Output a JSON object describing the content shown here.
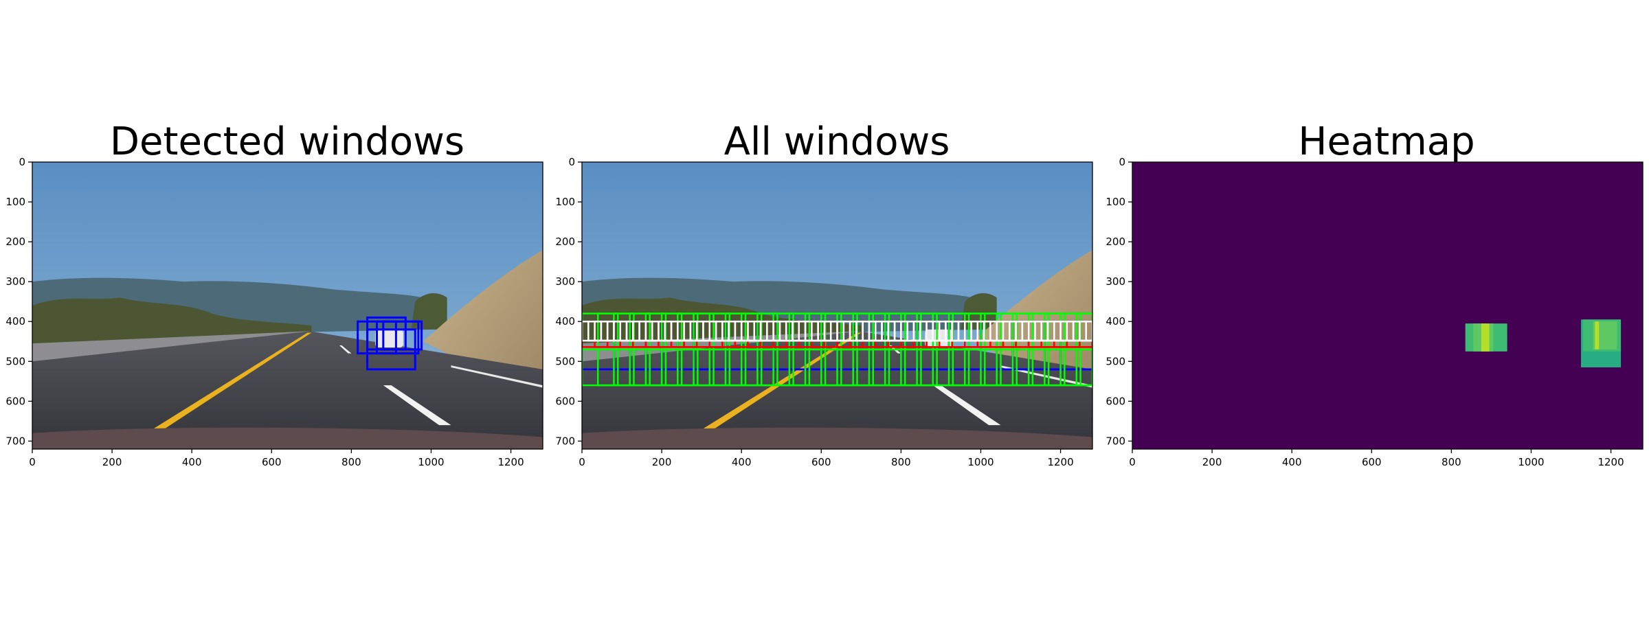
{
  "chart_data": [
    {
      "type": "image",
      "title": "Detected windows",
      "xlim": [
        0,
        1280
      ],
      "ylim": [
        720,
        0
      ],
      "xticks": [
        0,
        200,
        400,
        600,
        800,
        1000,
        1200
      ],
      "yticks": [
        0,
        100,
        200,
        300,
        400,
        500,
        600,
        700
      ],
      "boxes": [
        {
          "color": "#0000ff",
          "x0": 816,
          "y0": 400,
          "x1": 912,
          "y1": 480
        },
        {
          "color": "#0000ff",
          "x0": 840,
          "y0": 390,
          "x1": 936,
          "y1": 470
        },
        {
          "color": "#0000ff",
          "x0": 864,
          "y0": 400,
          "x1": 968,
          "y1": 480
        },
        {
          "color": "#0000ff",
          "x0": 880,
          "y0": 400,
          "x1": 976,
          "y1": 470
        },
        {
          "color": "#0000ff",
          "x0": 840,
          "y0": 420,
          "x1": 960,
          "y1": 520
        }
      ]
    },
    {
      "type": "image",
      "title": "All windows",
      "xlim": [
        0,
        1280
      ],
      "ylim": [
        720,
        0
      ],
      "xticks": [
        0,
        200,
        400,
        600,
        800,
        1000,
        1200
      ],
      "yticks": [
        0,
        100,
        200,
        300,
        400,
        500,
        600,
        700
      ],
      "window_grids": [
        {
          "color": "#0000ff",
          "y_start": 400,
          "y_end": 620,
          "win": 120,
          "step": 40
        },
        {
          "color": "#00ff00",
          "y_start": 380,
          "y_end": 560,
          "win": 90,
          "step": 40
        },
        {
          "color": "#ff0000",
          "y_start": 400,
          "y_end": 520,
          "win": 64,
          "step": 32
        },
        {
          "color": "#ffffff",
          "y_start": 400,
          "y_end": 470,
          "win": 48,
          "step": 16
        }
      ]
    },
    {
      "type": "heatmap",
      "title": "Heatmap",
      "xlim": [
        0,
        1280
      ],
      "ylim": [
        720,
        0
      ],
      "xticks": [
        0,
        200,
        400,
        600,
        800,
        1000,
        1200
      ],
      "yticks": [
        0,
        100,
        200,
        300,
        400,
        500,
        600,
        700
      ],
      "background_color": "#440154",
      "cells": [
        {
          "x0": 835,
          "y0": 405,
          "x1": 940,
          "y1": 475,
          "color": "#3fbc73"
        },
        {
          "x0": 855,
          "y0": 405,
          "x1": 905,
          "y1": 475,
          "color": "#5ec962"
        },
        {
          "x0": 875,
          "y0": 405,
          "x1": 895,
          "y1": 475,
          "color": "#b5de2b"
        },
        {
          "x0": 1125,
          "y0": 395,
          "x1": 1225,
          "y1": 515,
          "color": "#27ad81"
        },
        {
          "x0": 1130,
          "y0": 395,
          "x1": 1225,
          "y1": 475,
          "color": "#3fbc73"
        },
        {
          "x0": 1155,
          "y0": 400,
          "x1": 1215,
          "y1": 470,
          "color": "#5ec962"
        },
        {
          "x0": 1160,
          "y0": 400,
          "x1": 1170,
          "y1": 470,
          "color": "#b5de2b"
        }
      ]
    }
  ]
}
